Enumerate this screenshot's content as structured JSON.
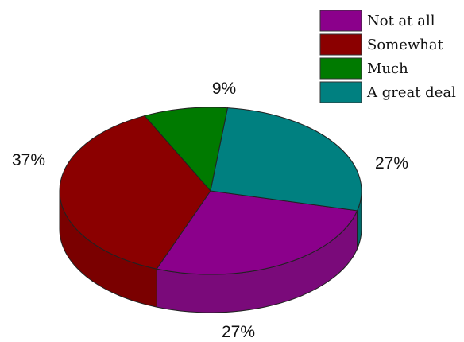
{
  "chart_data": {
    "type": "pie",
    "variant": "3d",
    "legend_position": "top-right",
    "slices": [
      {
        "label": "Not at all",
        "value": 27,
        "display": "27%",
        "color": "#8B008B",
        "side_color": "#7A0A7A"
      },
      {
        "label": "Somewhat",
        "value": 37,
        "display": "37%",
        "color": "#8B0000",
        "side_color": "#7A0000"
      },
      {
        "label": "Much",
        "value": 9,
        "display": "9%",
        "color": "#007A00",
        "side_color": "#006400"
      },
      {
        "label": "A great deal",
        "value": 27,
        "display": "27%",
        "color": "#008080",
        "side_color": "#006B6B"
      }
    ]
  }
}
